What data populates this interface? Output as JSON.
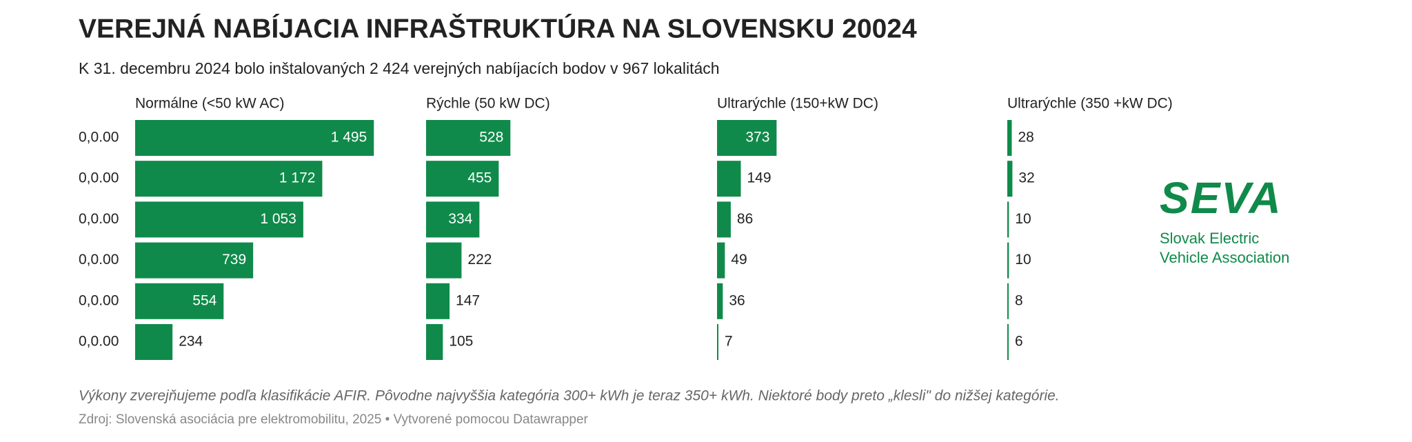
{
  "chart_data": {
    "type": "bar",
    "title": "VEREJNÁ NABÍJACIA INFRAŠTRUKTÚRA NA SLOVENSKU 20024",
    "subtitle": "K 31. decembru 2024 bolo inštalovaných 2 424 verejných nabíjacích bodov v 967 lokalitách",
    "categories": [
      "0,0.00",
      "0,0.00",
      "0,0.00",
      "0,0.00",
      "0,0.00",
      "0,0.00"
    ],
    "xlim": [
      0,
      1822
    ],
    "series": [
      {
        "name": "Normálne (<50 kW AC)",
        "color": "#0f8a4a",
        "values": [
          1495,
          1172,
          1053,
          739,
          554,
          234
        ],
        "value_labels": [
          "1 495",
          "1 172",
          "1 053",
          "739",
          "554",
          "234"
        ]
      },
      {
        "name": "Rýchle (50 kW DC)",
        "color": "#0f8a4a",
        "values": [
          528,
          455,
          334,
          222,
          147,
          105
        ]
      },
      {
        "name": "Ultrarýchle (150+kW DC)",
        "color": "#0f8a4a",
        "values": [
          373,
          149,
          86,
          49,
          36,
          7
        ]
      },
      {
        "name": "Ultrarýchle (350 +kW DC)",
        "color": "#0f8a4a",
        "values": [
          28,
          32,
          10,
          10,
          8,
          6
        ]
      }
    ],
    "notes": "Výkony zverejňujeme podľa klasifikácie AFIR. Pôvodne najvyššia kategória 300+ kWh je teraz 350+ kWh. Niektoré body preto „klesli\" do nižšej kategórie.",
    "source": "Zdroj: Slovenská asociácia pre elektromobilitu, 2025 • Vytvorené pomocou Datawrapper"
  },
  "logo": {
    "mark": "SEVA",
    "lines": [
      "Slovak Electric",
      "Vehicle Association"
    ]
  }
}
